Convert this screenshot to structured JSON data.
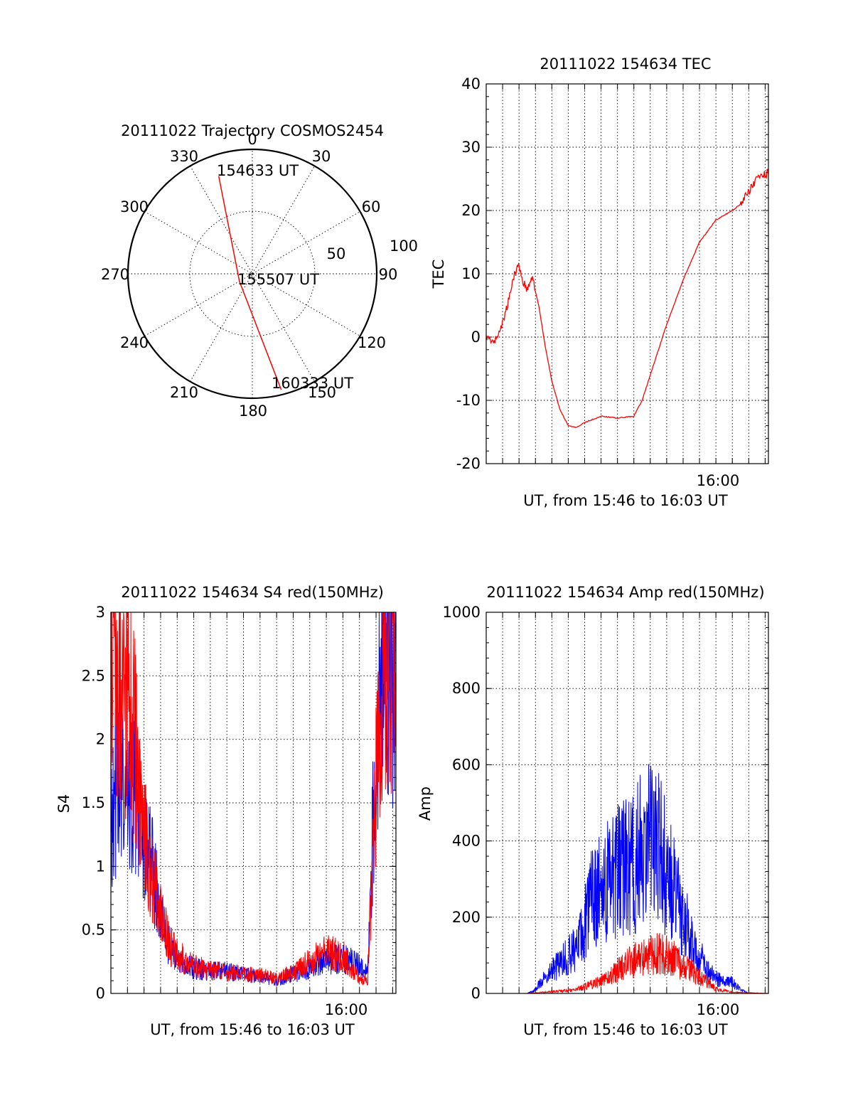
{
  "colors": {
    "red": "#ff0000",
    "blue": "#0000ff",
    "axis": "#000000"
  },
  "chart_data": [
    {
      "type": "polar",
      "title": "20111022 Trajectory COSMOS2454",
      "angle_labels": [
        "0",
        "30",
        "60",
        "90",
        "120",
        "150",
        "180",
        "210",
        "240",
        "270",
        "300",
        "330"
      ],
      "ring_labels": [
        "50",
        "100"
      ],
      "annotations": [
        "154633 UT",
        "155507 UT",
        "160333 UT"
      ],
      "track": [
        {
          "azimuth": 341,
          "zenith": 83
        },
        {
          "azimuth": 240,
          "zenith": 12
        },
        {
          "azimuth": 166,
          "zenith": 96
        }
      ]
    },
    {
      "type": "line",
      "title": "20111022 154634 TEC",
      "xlabel": "UT, from 15:46 to 16:03 UT",
      "ylabel": "TEC",
      "xtick_labels": [
        "16:00"
      ],
      "yticks": [
        "-20",
        "-10",
        "0",
        "10",
        "20",
        "30",
        "40"
      ],
      "xlim_minutes": [
        0,
        17.2
      ],
      "ylim": [
        -20,
        40
      ],
      "grid": true,
      "series": [
        {
          "color": "red",
          "x": [
            0.0,
            0.5,
            0.9,
            1.3,
            1.6,
            2.0,
            2.2,
            2.5,
            2.8,
            3.2,
            3.6,
            4.0,
            4.5,
            5.0,
            5.5,
            6.0,
            7.0,
            8.0,
            9.0,
            9.5,
            10.0,
            10.5,
            11.0,
            12.0,
            13.0,
            14.0,
            15.0,
            15.5,
            16.0,
            16.5,
            17.2
          ],
          "y": [
            0,
            -0.8,
            1.5,
            5,
            9,
            11.5,
            9,
            7.5,
            9.5,
            5,
            -1.5,
            -7,
            -11.5,
            -14,
            -14.3,
            -13.5,
            -12.5,
            -12.8,
            -12.5,
            -10,
            -6,
            -2,
            2,
            9,
            15,
            18.5,
            20,
            21,
            23,
            25,
            26
          ]
        }
      ]
    },
    {
      "type": "line",
      "title": "20111022 154634 S4 red(150MHz)",
      "xlabel": "UT, from 15:46 to 16:03 UT",
      "ylabel": "S4",
      "xtick_labels": [
        "16:00"
      ],
      "yticks": [
        "0",
        "0.5",
        "1",
        "1.5",
        "2",
        "2.5",
        "3"
      ],
      "xlim_minutes": [
        0,
        17.2
      ],
      "ylim": [
        0,
        3
      ],
      "grid": true,
      "series": [
        {
          "color": "red",
          "x": [
            0.0,
            0.5,
            1.0,
            1.5,
            2.0,
            2.5,
            3.0,
            3.5,
            4.0,
            5.0,
            6.0,
            7.0,
            8.0,
            9.0,
            10.0,
            11.0,
            12.0,
            13.0,
            14.0,
            15.0,
            15.5,
            16.0,
            16.5,
            17.2
          ],
          "y": [
            2.7,
            2.6,
            2.3,
            1.9,
            1.3,
            0.9,
            0.6,
            0.4,
            0.3,
            0.22,
            0.18,
            0.17,
            0.15,
            0.14,
            0.12,
            0.16,
            0.25,
            0.32,
            0.3,
            0.12,
            0.1,
            1.6,
            2.7,
            2.7
          ]
        },
        {
          "color": "blue",
          "x": [
            0.0,
            0.5,
            1.0,
            1.5,
            2.0,
            2.5,
            3.0,
            3.5,
            4.0,
            5.0,
            6.0,
            7.0,
            8.0,
            9.0,
            10.0,
            11.0,
            12.0,
            13.0,
            14.0,
            15.0,
            15.5,
            16.0,
            16.5,
            17.2
          ],
          "y": [
            1.5,
            1.6,
            1.5,
            1.5,
            1.2,
            1.0,
            0.6,
            0.4,
            0.25,
            0.2,
            0.17,
            0.18,
            0.15,
            0.13,
            0.1,
            0.15,
            0.2,
            0.25,
            0.28,
            0.22,
            0.15,
            2.0,
            2.7,
            2.6
          ]
        }
      ]
    },
    {
      "type": "line",
      "title": "20111022 154634 Amp red(150MHz)",
      "xlabel": "UT, from 15:46 to 16:03 UT",
      "ylabel": "Amp",
      "xtick_labels": [
        "16:00"
      ],
      "yticks": [
        "0",
        "200",
        "400",
        "600",
        "800",
        "1000"
      ],
      "xlim_minutes": [
        0,
        17.2
      ],
      "ylim": [
        0,
        1000
      ],
      "grid": true,
      "series": [
        {
          "color": "red",
          "x": [
            0,
            2.5,
            3.5,
            4.5,
            5.5,
            6.5,
            7.5,
            8.5,
            9.5,
            10.5,
            11.5,
            12.5,
            13.5,
            14.0,
            15.0,
            17.2
          ],
          "y": [
            0,
            0,
            3,
            6,
            10,
            25,
            45,
            75,
            95,
            105,
            90,
            60,
            30,
            12,
            3,
            0
          ]
        },
        {
          "color": "blue",
          "x": [
            0,
            2.5,
            3.0,
            3.5,
            4.0,
            4.5,
            5.0,
            5.5,
            6.0,
            6.5,
            7.0,
            7.5,
            8.0,
            8.5,
            9.0,
            9.5,
            10.0,
            10.5,
            11.0,
            11.5,
            12.0,
            12.5,
            13.0,
            13.5,
            14.0,
            14.5,
            15.0,
            15.5,
            16.0,
            17.2
          ],
          "y": [
            0,
            0,
            10,
            40,
            60,
            80,
            100,
            120,
            180,
            260,
            280,
            300,
            320,
            330,
            340,
            380,
            400,
            380,
            320,
            260,
            200,
            150,
            100,
            60,
            40,
            30,
            30,
            10,
            0,
            0
          ]
        }
      ]
    }
  ]
}
